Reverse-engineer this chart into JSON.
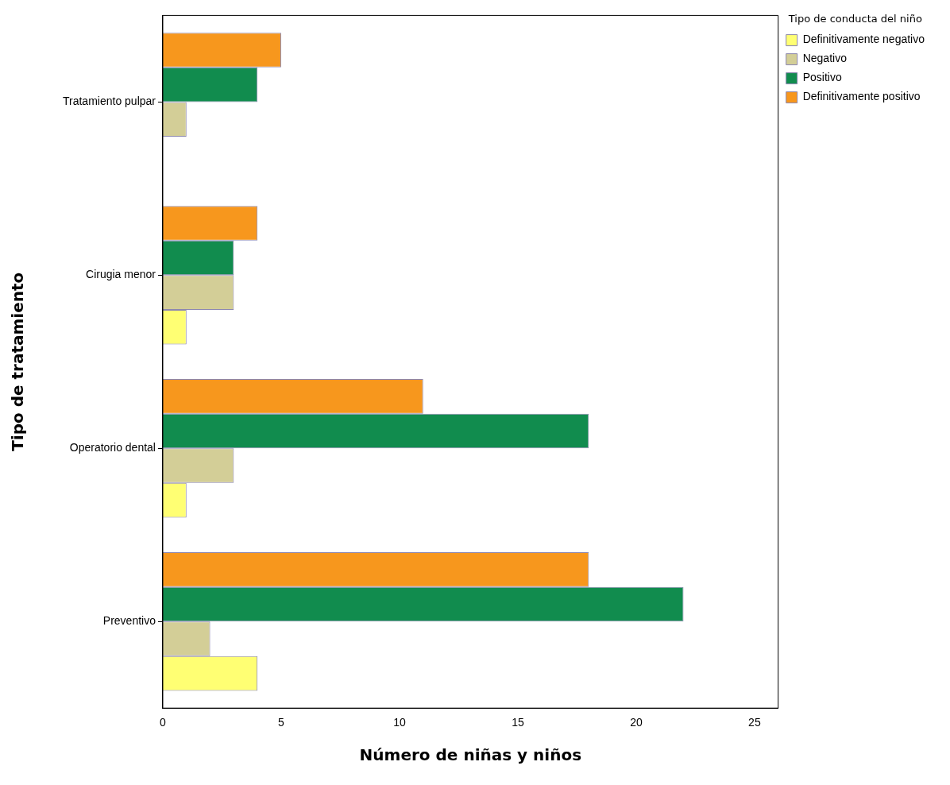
{
  "chart_data": {
    "type": "bar",
    "orientation": "horizontal",
    "xlabel": "Número de niñas y niños",
    "ylabel": "Tipo de tratamiento",
    "legend_title": "Tipo de conducta del niño",
    "legend": "top right",
    "grid": false,
    "categories": [
      "Tratamiento pulpar",
      "Cirugia menor",
      "Operatorio dental",
      "Preventivo"
    ],
    "xlim": [
      0,
      26
    ],
    "xticks": [
      0,
      5,
      10,
      15,
      20,
      25
    ],
    "series": [
      {
        "name": "Definitivamente negativo",
        "color": "#ffff73",
        "values": [
          0,
          1,
          1,
          4
        ]
      },
      {
        "name": "Negativo",
        "color": "#d3ce97",
        "values": [
          1,
          3,
          3,
          2
        ]
      },
      {
        "name": "Positivo",
        "color": "#118c4e",
        "values": [
          4,
          3,
          18,
          22
        ]
      },
      {
        "name": "Definitivamente positivo",
        "color": "#f7971d",
        "values": [
          5,
          4,
          11,
          18
        ]
      }
    ]
  }
}
